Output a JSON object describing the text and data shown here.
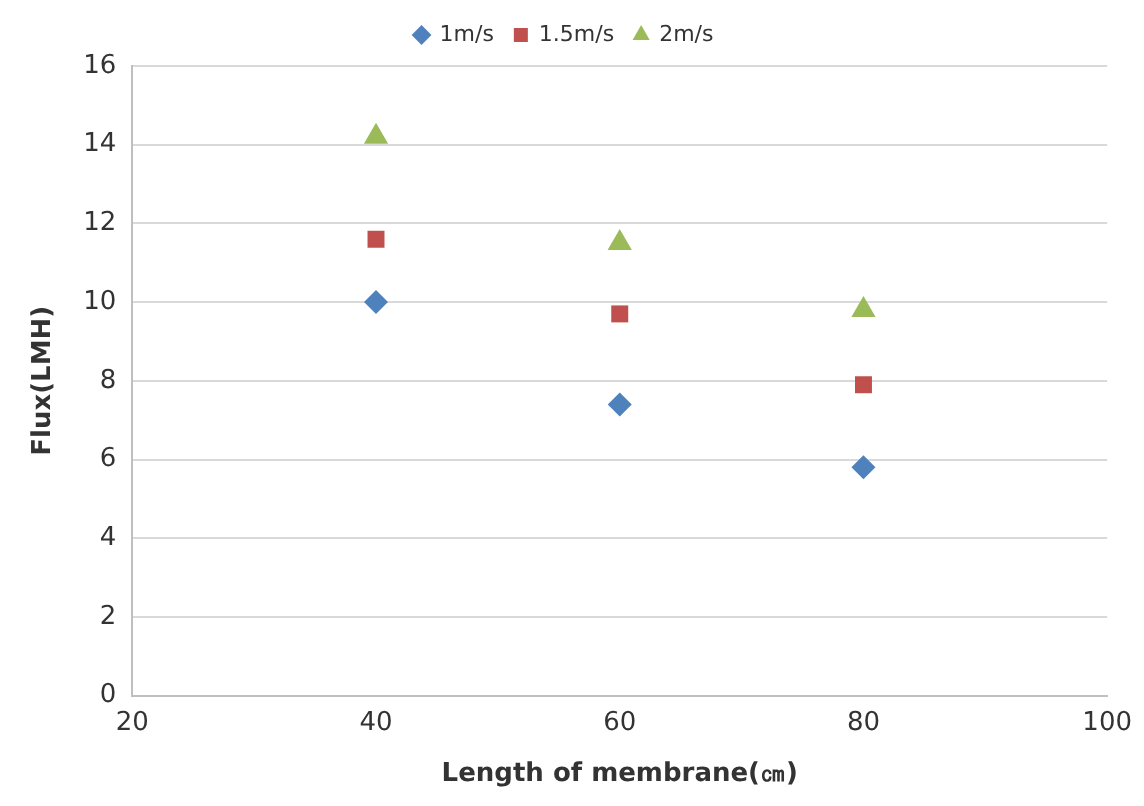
{
  "chart_data": {
    "type": "scatter",
    "xlabel": "Length of membrane(㎝)",
    "ylabel": "Flux(LMH)",
    "x": [
      40,
      60,
      80
    ],
    "series": [
      {
        "name": "1m/s",
        "color": "#4f81bd",
        "marker": "diamond",
        "values": [
          10.0,
          7.4,
          5.8
        ]
      },
      {
        "name": "1.5m/s",
        "color": "#c0504d",
        "marker": "square",
        "values": [
          11.6,
          9.7,
          7.9
        ]
      },
      {
        "name": "2m/s",
        "color": "#9bbb59",
        "marker": "triangle",
        "values": [
          14.2,
          11.5,
          9.8
        ]
      }
    ],
    "xlim": [
      20,
      100
    ],
    "xticks": [
      20,
      40,
      60,
      80,
      100
    ],
    "ylim": [
      0,
      16
    ],
    "yticks": [
      0,
      2,
      4,
      6,
      8,
      10,
      12,
      14,
      16
    ],
    "grid": "y",
    "legend": "top"
  }
}
